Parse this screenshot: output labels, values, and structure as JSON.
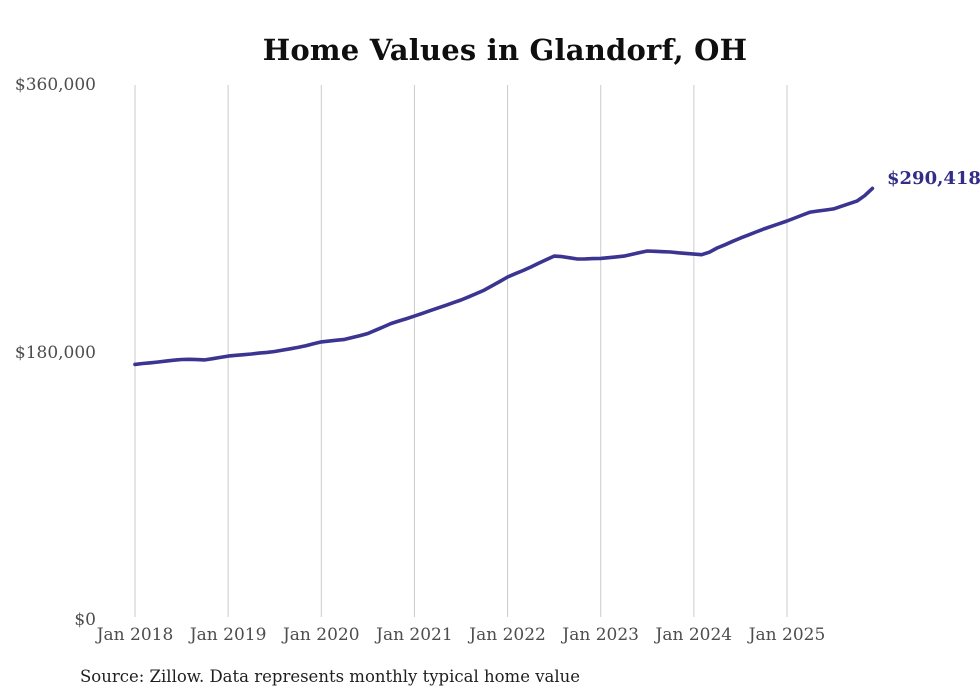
{
  "chart": {
    "title": "Home Values in Glandorf, OH",
    "end_label": "$290,418",
    "source_note": "Source: Zillow. Data represents monthly typical home value",
    "colors": {
      "line": "#3b3591",
      "end_label": "#322d86",
      "gridline": "#cbcbcb",
      "axis_text": "#4d4d4d",
      "title_text": "#0f0f0f",
      "source_text": "#1f1f1f",
      "background": "#ffffff"
    }
  },
  "chart_data": {
    "type": "line",
    "title": "Home Values in Glandorf, OH",
    "xlabel": "",
    "ylabel": "",
    "ylim": [
      0,
      360000
    ],
    "y_ticks": [
      0,
      180000,
      360000
    ],
    "y_tick_labels": [
      "$0",
      "$180,000",
      "$360,000"
    ],
    "x_tick_labels": [
      "Jan 2018",
      "Jan 2019",
      "Jan 2020",
      "Jan 2021",
      "Jan 2022",
      "Jan 2023",
      "Jan 2024",
      "Jan 2025"
    ],
    "grid": "vertical-only",
    "legend": "none",
    "end_annotation": "$290,418",
    "source": "Source: Zillow. Data represents monthly typical home value",
    "x": [
      "2018-01",
      "2018-02",
      "2018-03",
      "2018-04",
      "2018-05",
      "2018-06",
      "2018-07",
      "2018-08",
      "2018-09",
      "2018-10",
      "2018-11",
      "2018-12",
      "2019-01",
      "2019-02",
      "2019-03",
      "2019-04",
      "2019-05",
      "2019-06",
      "2019-07",
      "2019-08",
      "2019-09",
      "2019-10",
      "2019-11",
      "2019-12",
      "2020-01",
      "2020-02",
      "2020-03",
      "2020-04",
      "2020-05",
      "2020-06",
      "2020-07",
      "2020-08",
      "2020-09",
      "2020-10",
      "2020-11",
      "2020-12",
      "2021-01",
      "2021-02",
      "2021-03",
      "2021-04",
      "2021-05",
      "2021-06",
      "2021-07",
      "2021-08",
      "2021-09",
      "2021-10",
      "2021-11",
      "2021-12",
      "2022-01",
      "2022-02",
      "2022-03",
      "2022-04",
      "2022-05",
      "2022-06",
      "2022-07",
      "2022-08",
      "2022-09",
      "2022-10",
      "2022-11",
      "2022-12",
      "2023-01",
      "2023-02",
      "2023-03",
      "2023-04",
      "2023-05",
      "2023-06",
      "2023-07",
      "2023-08",
      "2023-09",
      "2023-10",
      "2023-11",
      "2023-12",
      "2024-01",
      "2024-02",
      "2024-03",
      "2024-04",
      "2024-05",
      "2024-06",
      "2024-07",
      "2024-08",
      "2024-09",
      "2024-10",
      "2024-11",
      "2024-12",
      "2025-01",
      "2025-02",
      "2025-03",
      "2025-04",
      "2025-05",
      "2025-06",
      "2025-07",
      "2025-08",
      "2025-09",
      "2025-10",
      "2025-11",
      "2025-12"
    ],
    "series": [
      {
        "name": "Typical home value",
        "values": [
          172000,
          172600,
          173100,
          173600,
          174200,
          174800,
          175300,
          175400,
          175200,
          175000,
          175800,
          176700,
          177600,
          178100,
          178500,
          179000,
          179600,
          180100,
          180700,
          181600,
          182500,
          183400,
          184600,
          185900,
          187100,
          187700,
          188300,
          188800,
          190100,
          191400,
          192800,
          195000,
          197200,
          199500,
          201200,
          202800,
          204500,
          206300,
          208100,
          209900,
          211700,
          213500,
          215300,
          217500,
          219700,
          222000,
          224900,
          227800,
          230800,
          233000,
          235200,
          237500,
          240000,
          242500,
          244900,
          244500,
          243700,
          242900,
          243000,
          243200,
          243300,
          243800,
          244300,
          244900,
          246000,
          247200,
          248300,
          248100,
          247800,
          247600,
          247100,
          246700,
          246200,
          245800,
          247500,
          250300,
          252500,
          254800,
          257000,
          259000,
          261100,
          263100,
          264900,
          266700,
          268500,
          270500,
          272500,
          274500,
          275200,
          275900,
          276600,
          278400,
          280100,
          281900,
          285500,
          290418
        ]
      }
    ]
  }
}
